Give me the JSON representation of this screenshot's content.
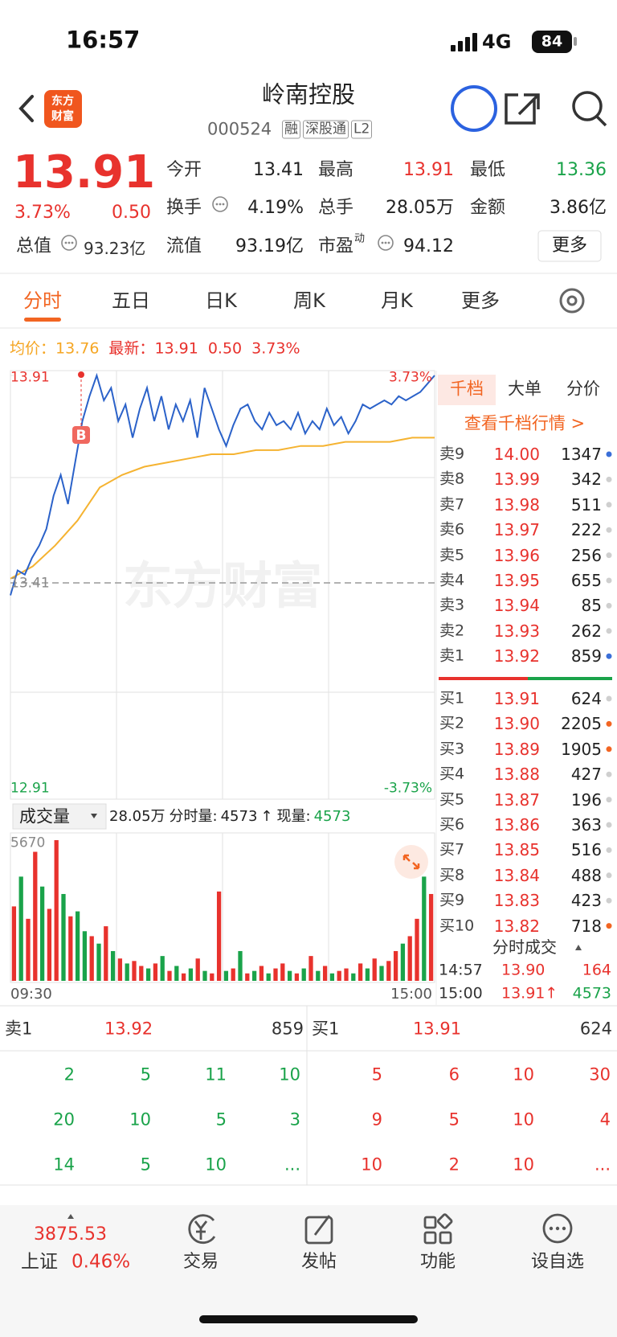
{
  "status": {
    "time": "16:57",
    "network": "4G",
    "battery": "84"
  },
  "header": {
    "logo": [
      "东方",
      "财富"
    ],
    "title": "岭南控股",
    "code": "000524",
    "tags": [
      "融",
      "深股通",
      "L2"
    ]
  },
  "quote": {
    "price": "13.91",
    "change_pct": "3.73%",
    "change": "0.50",
    "total_value_label": "总值",
    "total_value": "93.23亿",
    "fields": [
      {
        "label": "今开",
        "value": "13.41",
        "color": "#222222"
      },
      {
        "label": "最高",
        "value": "13.91",
        "color": "#e8322d"
      },
      {
        "label": "最低",
        "value": "13.36",
        "color": "#1aa34a"
      },
      {
        "label": "换手",
        "value": "4.19%",
        "color": "#222222"
      },
      {
        "label": "总手",
        "value": "28.05万",
        "color": "#222222"
      },
      {
        "label": "金额",
        "value": "3.86亿",
        "color": "#222222"
      },
      {
        "label": "流值",
        "value": "93.19亿",
        "color": "#222222"
      },
      {
        "label": "市盈",
        "sup": "动",
        "value": "94.12",
        "color": "#222222"
      }
    ],
    "more": "更多"
  },
  "tabs": [
    "分时",
    "五日",
    "日K",
    "周K",
    "月K",
    "更多"
  ],
  "chart": {
    "avg_label": "均价：",
    "avg": "13.76",
    "latest_label": "最新：",
    "latest": "13.91",
    "change": "0.50",
    "change_pct": "3.73%",
    "price_ylim": [
      12.91,
      13.91
    ],
    "prev_close": 13.41,
    "top_pct": "3.73%",
    "bottom_pct": "-3.73%",
    "watermark": "东方财富",
    "marker": "B",
    "price_color": "#2b62c9",
    "avg_color": "#f5b331",
    "price": [
      13.38,
      13.44,
      13.43,
      13.47,
      13.5,
      13.54,
      13.62,
      13.67,
      13.6,
      13.7,
      13.8,
      13.86,
      13.91,
      13.85,
      13.88,
      13.8,
      13.84,
      13.76,
      13.83,
      13.88,
      13.8,
      13.86,
      13.78,
      13.84,
      13.8,
      13.85,
      13.76,
      13.88,
      13.83,
      13.78,
      13.74,
      13.79,
      13.83,
      13.84,
      13.8,
      13.78,
      13.82,
      13.79,
      13.8,
      13.78,
      13.82,
      13.77,
      13.8,
      13.78,
      13.83,
      13.79,
      13.81,
      13.77,
      13.8,
      13.84,
      13.83,
      13.84,
      13.85,
      13.84,
      13.86,
      13.85,
      13.86,
      13.87,
      13.89,
      13.91
    ],
    "avg_price": [
      13.42,
      13.45,
      13.5,
      13.56,
      13.64,
      13.67,
      13.69,
      13.7,
      13.71,
      13.72,
      13.72,
      13.73,
      13.73,
      13.74,
      13.74,
      13.75,
      13.75,
      13.75,
      13.76,
      13.76
    ],
    "volume_selector": "成交量",
    "volume_total": "28.05万",
    "volume_now_label": "分时量:",
    "volume_now": "4573",
    "volume_now_arrow": "↑",
    "volume_cur_label": "现量:",
    "volume_cur": "4573",
    "volume_ylim": [
      0,
      5670
    ],
    "volume": [
      3000,
      4200,
      2500,
      5200,
      3800,
      2900,
      5670,
      3500,
      2600,
      2800,
      2000,
      1800,
      1500,
      2200,
      1200,
      900,
      700,
      800,
      600,
      500,
      700,
      1000,
      400,
      600,
      300,
      500,
      900,
      400,
      300,
      3600,
      400,
      500,
      1200,
      300,
      400,
      600,
      300,
      500,
      700,
      400,
      300,
      500,
      1000,
      400,
      600,
      300,
      400,
      500,
      300,
      700,
      500,
      900,
      600,
      800,
      1200,
      1500,
      1800,
      2500,
      4200,
      3500
    ],
    "volume_dirs": [
      "up",
      "down",
      "up",
      "up",
      "down",
      "up",
      "up",
      "down",
      "up",
      "down",
      "down",
      "up",
      "down",
      "up",
      "down",
      "up",
      "down",
      "up",
      "up",
      "down",
      "up",
      "down",
      "up",
      "down",
      "up",
      "down",
      "up",
      "down",
      "up",
      "up",
      "down",
      "up",
      "down",
      "up",
      "down",
      "up",
      "down",
      "up",
      "up",
      "down",
      "up",
      "down",
      "up",
      "down",
      "up",
      "down",
      "up",
      "up",
      "down",
      "up",
      "down",
      "up",
      "down",
      "up",
      "up",
      "down",
      "up",
      "up",
      "down",
      "up"
    ],
    "dir_colors": {
      "up": "#e8322d",
      "down": "#1aa34a"
    },
    "time_start": "09:30",
    "time_end": "15:00"
  },
  "order_book": {
    "tabs": [
      "千档",
      "大单",
      "分价"
    ],
    "link": "查看千档行情 >",
    "asks": [
      {
        "label": "卖9",
        "price": "14.00",
        "volume": "1347",
        "dot": "#3b6fd8"
      },
      {
        "label": "卖8",
        "price": "13.99",
        "volume": "342",
        "dot": "#cfcfcf"
      },
      {
        "label": "卖7",
        "price": "13.98",
        "volume": "511",
        "dot": "#cfcfcf"
      },
      {
        "label": "卖6",
        "price": "13.97",
        "volume": "222",
        "dot": "#cfcfcf"
      },
      {
        "label": "卖5",
        "price": "13.96",
        "volume": "256",
        "dot": "#cfcfcf"
      },
      {
        "label": "卖4",
        "price": "13.95",
        "volume": "655",
        "dot": "#cfcfcf"
      },
      {
        "label": "卖3",
        "price": "13.94",
        "volume": "85",
        "dot": "#cfcfcf"
      },
      {
        "label": "卖2",
        "price": "13.93",
        "volume": "262",
        "dot": "#cfcfcf"
      },
      {
        "label": "卖1",
        "price": "13.92",
        "volume": "859",
        "dot": "#3b6fd8"
      }
    ],
    "bids": [
      {
        "label": "买1",
        "price": "13.91",
        "volume": "624",
        "dot": "#cfcfcf"
      },
      {
        "label": "买2",
        "price": "13.90",
        "volume": "2205",
        "dot": "#f26522"
      },
      {
        "label": "买3",
        "price": "13.89",
        "volume": "1905",
        "dot": "#f26522"
      },
      {
        "label": "买4",
        "price": "13.88",
        "volume": "427",
        "dot": "#cfcfcf"
      },
      {
        "label": "买5",
        "price": "13.87",
        "volume": "196",
        "dot": "#cfcfcf"
      },
      {
        "label": "买6",
        "price": "13.86",
        "volume": "363",
        "dot": "#cfcfcf"
      },
      {
        "label": "买7",
        "price": "13.85",
        "volume": "516",
        "dot": "#cfcfcf"
      },
      {
        "label": "买8",
        "price": "13.84",
        "volume": "488",
        "dot": "#cfcfcf"
      },
      {
        "label": "买9",
        "price": "13.83",
        "volume": "423",
        "dot": "#cfcfcf"
      },
      {
        "label": "买10",
        "price": "13.82",
        "volume": "718",
        "dot": "#f26522"
      }
    ],
    "trades_title": "分时成交",
    "trades": [
      {
        "time": "14:57",
        "price": "13.90",
        "volume": "164",
        "color": "#e8322d"
      },
      {
        "time": "15:00",
        "price": "13.91↑",
        "volume": "4573",
        "color": "#1aa34a"
      }
    ]
  },
  "level1": {
    "sell": {
      "label": "卖1",
      "price": "13.92",
      "volume": "859",
      "queue": [
        [
          "2",
          "5",
          "11",
          "10"
        ],
        [
          "20",
          "10",
          "5",
          "3"
        ],
        [
          "14",
          "5",
          "10",
          "..."
        ]
      ]
    },
    "buy": {
      "label": "买1",
      "price": "13.91",
      "volume": "624",
      "queue": [
        [
          "5",
          "6",
          "10",
          "30"
        ],
        [
          "9",
          "5",
          "10",
          "4"
        ],
        [
          "10",
          "2",
          "10",
          "..."
        ]
      ]
    }
  },
  "nav": {
    "index_price": "3875.53",
    "index_name": "上证",
    "index_pct": "0.46%",
    "items": [
      "交易",
      "发帖",
      "功能",
      "设自选"
    ]
  }
}
